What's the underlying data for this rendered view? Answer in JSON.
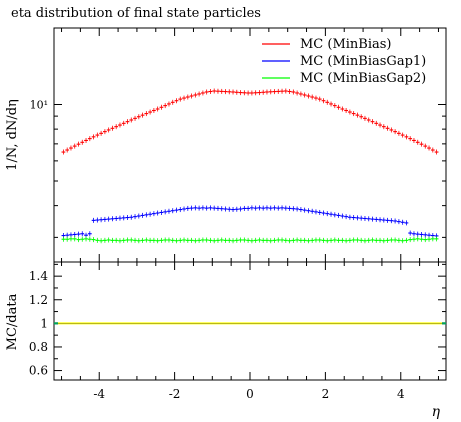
{
  "chart_data": {
    "type": "line",
    "title": "eta distribution of final state particles",
    "xlabel": "η",
    "ylabel": "1/N, dN/dη",
    "ratio_ylabel": "MC/data",
    "xlim": [
      -5.2,
      5.2
    ],
    "ylim": [
      2.4,
      20
    ],
    "yscale": "log",
    "main_yticks_labeled": [
      {
        "value": 10,
        "label": "10¹"
      }
    ],
    "ratio_ylim": [
      0.52,
      1.52
    ],
    "ratio_yticks": [
      0.6,
      0.8,
      1,
      1.2,
      1.4
    ],
    "ratio_ytick_labels": [
      "0.6",
      "0.8",
      "1",
      "1.2",
      "1.4"
    ],
    "xticks": [
      -4,
      -2,
      0,
      2,
      4
    ],
    "xtick_labels": [
      "-4",
      "-2",
      "0",
      "2",
      "4"
    ],
    "legend_position": "top-right",
    "eta_bins": {
      "min": -5.0,
      "max": 5.0,
      "n": 100
    },
    "series": [
      {
        "name": "MC (MinBias)",
        "color": "#ff0000",
        "values": [
          6.5,
          6.62,
          6.74,
          6.86,
          6.98,
          7.1,
          7.22,
          7.34,
          7.46,
          7.58,
          7.7,
          7.82,
          7.94,
          8.06,
          8.18,
          8.3,
          8.43,
          8.56,
          8.69,
          8.82,
          8.95,
          9.08,
          9.21,
          9.34,
          9.47,
          9.6,
          9.75,
          9.9,
          10.05,
          10.2,
          10.35,
          10.5,
          10.6,
          10.7,
          10.8,
          10.9,
          11.0,
          11.1,
          11.2,
          11.25,
          11.3,
          11.28,
          11.26,
          11.24,
          11.22,
          11.2,
          11.17,
          11.14,
          11.12,
          11.1,
          11.1,
          11.12,
          11.14,
          11.17,
          11.2,
          11.22,
          11.24,
          11.26,
          11.28,
          11.3,
          11.25,
          11.2,
          11.1,
          11.0,
          10.9,
          10.8,
          10.7,
          10.6,
          10.5,
          10.35,
          10.2,
          10.05,
          9.9,
          9.75,
          9.6,
          9.47,
          9.34,
          9.21,
          9.08,
          8.95,
          8.82,
          8.69,
          8.56,
          8.43,
          8.3,
          8.18,
          8.06,
          7.94,
          7.82,
          7.7,
          7.58,
          7.46,
          7.34,
          7.22,
          7.1,
          6.98,
          6.86,
          6.74,
          6.62,
          6.5
        ]
      },
      {
        "name": "MC (MinBiasGap1)",
        "color": "#0000ff",
        "values": [
          3.05,
          3.06,
          3.07,
          3.08,
          3.09,
          3.1,
          3.06,
          3.1,
          3.5,
          3.51,
          3.52,
          3.53,
          3.54,
          3.55,
          3.56,
          3.57,
          3.58,
          3.59,
          3.6,
          3.62,
          3.64,
          3.66,
          3.68,
          3.7,
          3.72,
          3.74,
          3.76,
          3.78,
          3.8,
          3.82,
          3.84,
          3.86,
          3.88,
          3.9,
          3.91,
          3.92,
          3.91,
          3.92,
          3.91,
          3.92,
          3.91,
          3.9,
          3.89,
          3.88,
          3.87,
          3.86,
          3.87,
          3.88,
          3.9,
          3.9,
          3.92,
          3.91,
          3.92,
          3.91,
          3.92,
          3.91,
          3.92,
          3.91,
          3.92,
          3.91,
          3.9,
          3.89,
          3.88,
          3.86,
          3.84,
          3.82,
          3.8,
          3.78,
          3.76,
          3.74,
          3.72,
          3.7,
          3.68,
          3.66,
          3.64,
          3.62,
          3.6,
          3.59,
          3.58,
          3.57,
          3.56,
          3.55,
          3.54,
          3.53,
          3.52,
          3.51,
          3.5,
          3.49,
          3.48,
          3.46,
          3.44,
          3.42,
          3.12,
          3.1,
          3.09,
          3.08,
          3.07,
          3.06,
          3.05,
          3.04
        ]
      },
      {
        "name": "MC (MinBiasGap2)",
        "color": "#00ff00",
        "values": [
          2.95,
          2.95,
          2.96,
          2.96,
          2.94,
          2.95,
          2.96,
          2.95,
          2.94,
          2.92,
          2.91,
          2.92,
          2.93,
          2.92,
          2.92,
          2.91,
          2.92,
          2.93,
          2.93,
          2.92,
          2.91,
          2.92,
          2.93,
          2.92,
          2.92,
          2.91,
          2.92,
          2.93,
          2.93,
          2.92,
          2.91,
          2.92,
          2.93,
          2.92,
          2.92,
          2.91,
          2.92,
          2.93,
          2.93,
          2.92,
          2.91,
          2.92,
          2.93,
          2.92,
          2.92,
          2.91,
          2.92,
          2.93,
          2.93,
          2.92,
          2.91,
          2.92,
          2.93,
          2.92,
          2.92,
          2.91,
          2.92,
          2.93,
          2.93,
          2.92,
          2.91,
          2.92,
          2.93,
          2.92,
          2.92,
          2.91,
          2.92,
          2.93,
          2.93,
          2.92,
          2.91,
          2.92,
          2.93,
          2.92,
          2.92,
          2.91,
          2.92,
          2.93,
          2.93,
          2.92,
          2.91,
          2.92,
          2.93,
          2.92,
          2.92,
          2.91,
          2.92,
          2.93,
          2.93,
          2.92,
          2.91,
          2.92,
          2.94,
          2.95,
          2.96,
          2.95,
          2.94,
          2.95,
          2.96,
          2.96
        ]
      }
    ],
    "ratio_series": [
      {
        "color": "#ffff00",
        "value": 1.0
      },
      {
        "color": "#0000ff",
        "value": 1.0
      },
      {
        "color": "#00aa55",
        "value": 1.0
      }
    ]
  }
}
